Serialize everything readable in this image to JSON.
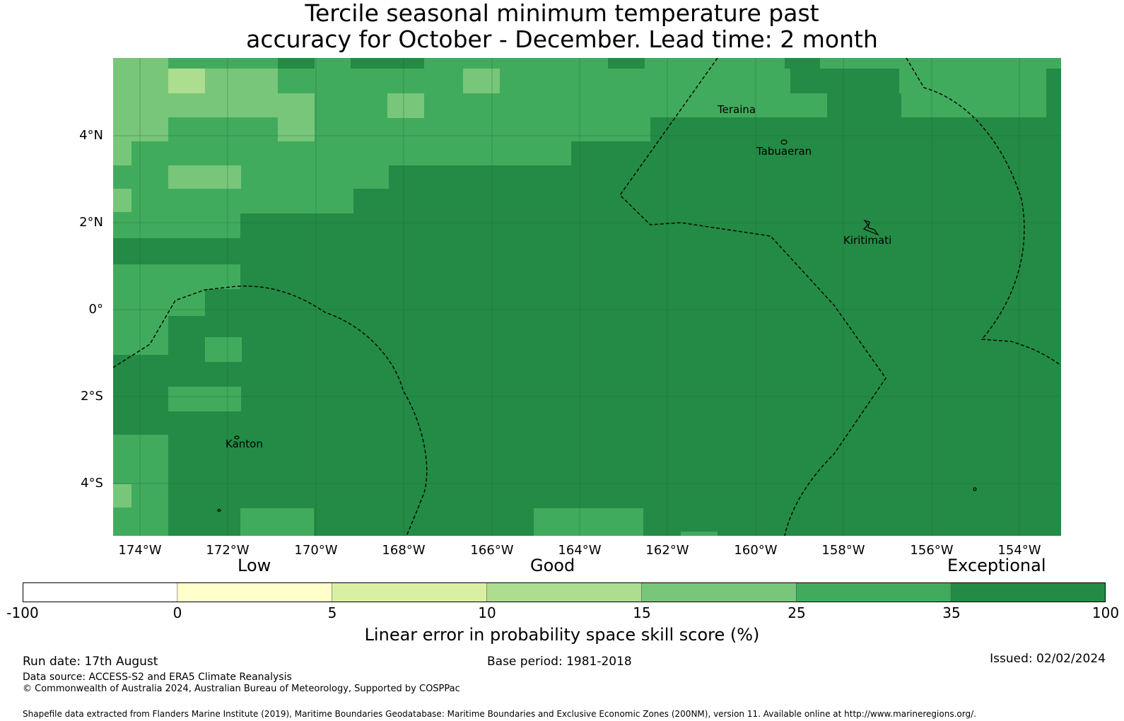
{
  "title_line1": "Tercile seasonal minimum temperature past",
  "title_line2": "accuracy for October - December. Lead time: 2 month",
  "map": {
    "lat_labels": [
      "4°N",
      "2°N",
      "0°",
      "2°S",
      "4°S"
    ],
    "lon_labels": [
      "174°W",
      "172°W",
      "170°W",
      "168°W",
      "166°W",
      "164°W",
      "162°W",
      "160°W",
      "158°W",
      "156°W",
      "154°W"
    ],
    "places": [
      "Teraina",
      "Tabuaeran",
      "Kiritimati",
      "Kanton"
    ],
    "colors": {
      "exceptional_dark": "#238b45",
      "band_25_35": "#41ab5d",
      "band_15_25": "#78c679",
      "band_10_15": "#addd8e",
      "boundary": "#000000"
    }
  },
  "legend": {
    "categories": [
      "Low",
      "Good",
      "Exceptional"
    ],
    "ticks": [
      "-100",
      "0",
      "5",
      "10",
      "15",
      "25",
      "35",
      "100"
    ],
    "colors": [
      "#ffffff",
      "#ffffcc",
      "#d9f0a3",
      "#addd8e",
      "#78c679",
      "#41ab5d",
      "#238b45"
    ],
    "label": "Linear error in probability space skill score (%)"
  },
  "footer": {
    "run_date": "Run date: 17th August",
    "base_period": "Base period: 1981-2018",
    "issued": "Issued: 02/02/2024",
    "data_source": "Data source: ACCESS-S2 and ERA5 Climate Reanalysis",
    "copyright": "© Commonwealth of Australia 2024, Australian Bureau of Meteorology, Supported by COSPPac",
    "shapefile": "Shapefile data extracted from Flanders Marine Institute (2019), Maritime Boundaries Geodatabase: Maritime Boundaries and Exclusive Economic Zones (200NM), version 11. Available online at http://www.marineregions.org/."
  }
}
